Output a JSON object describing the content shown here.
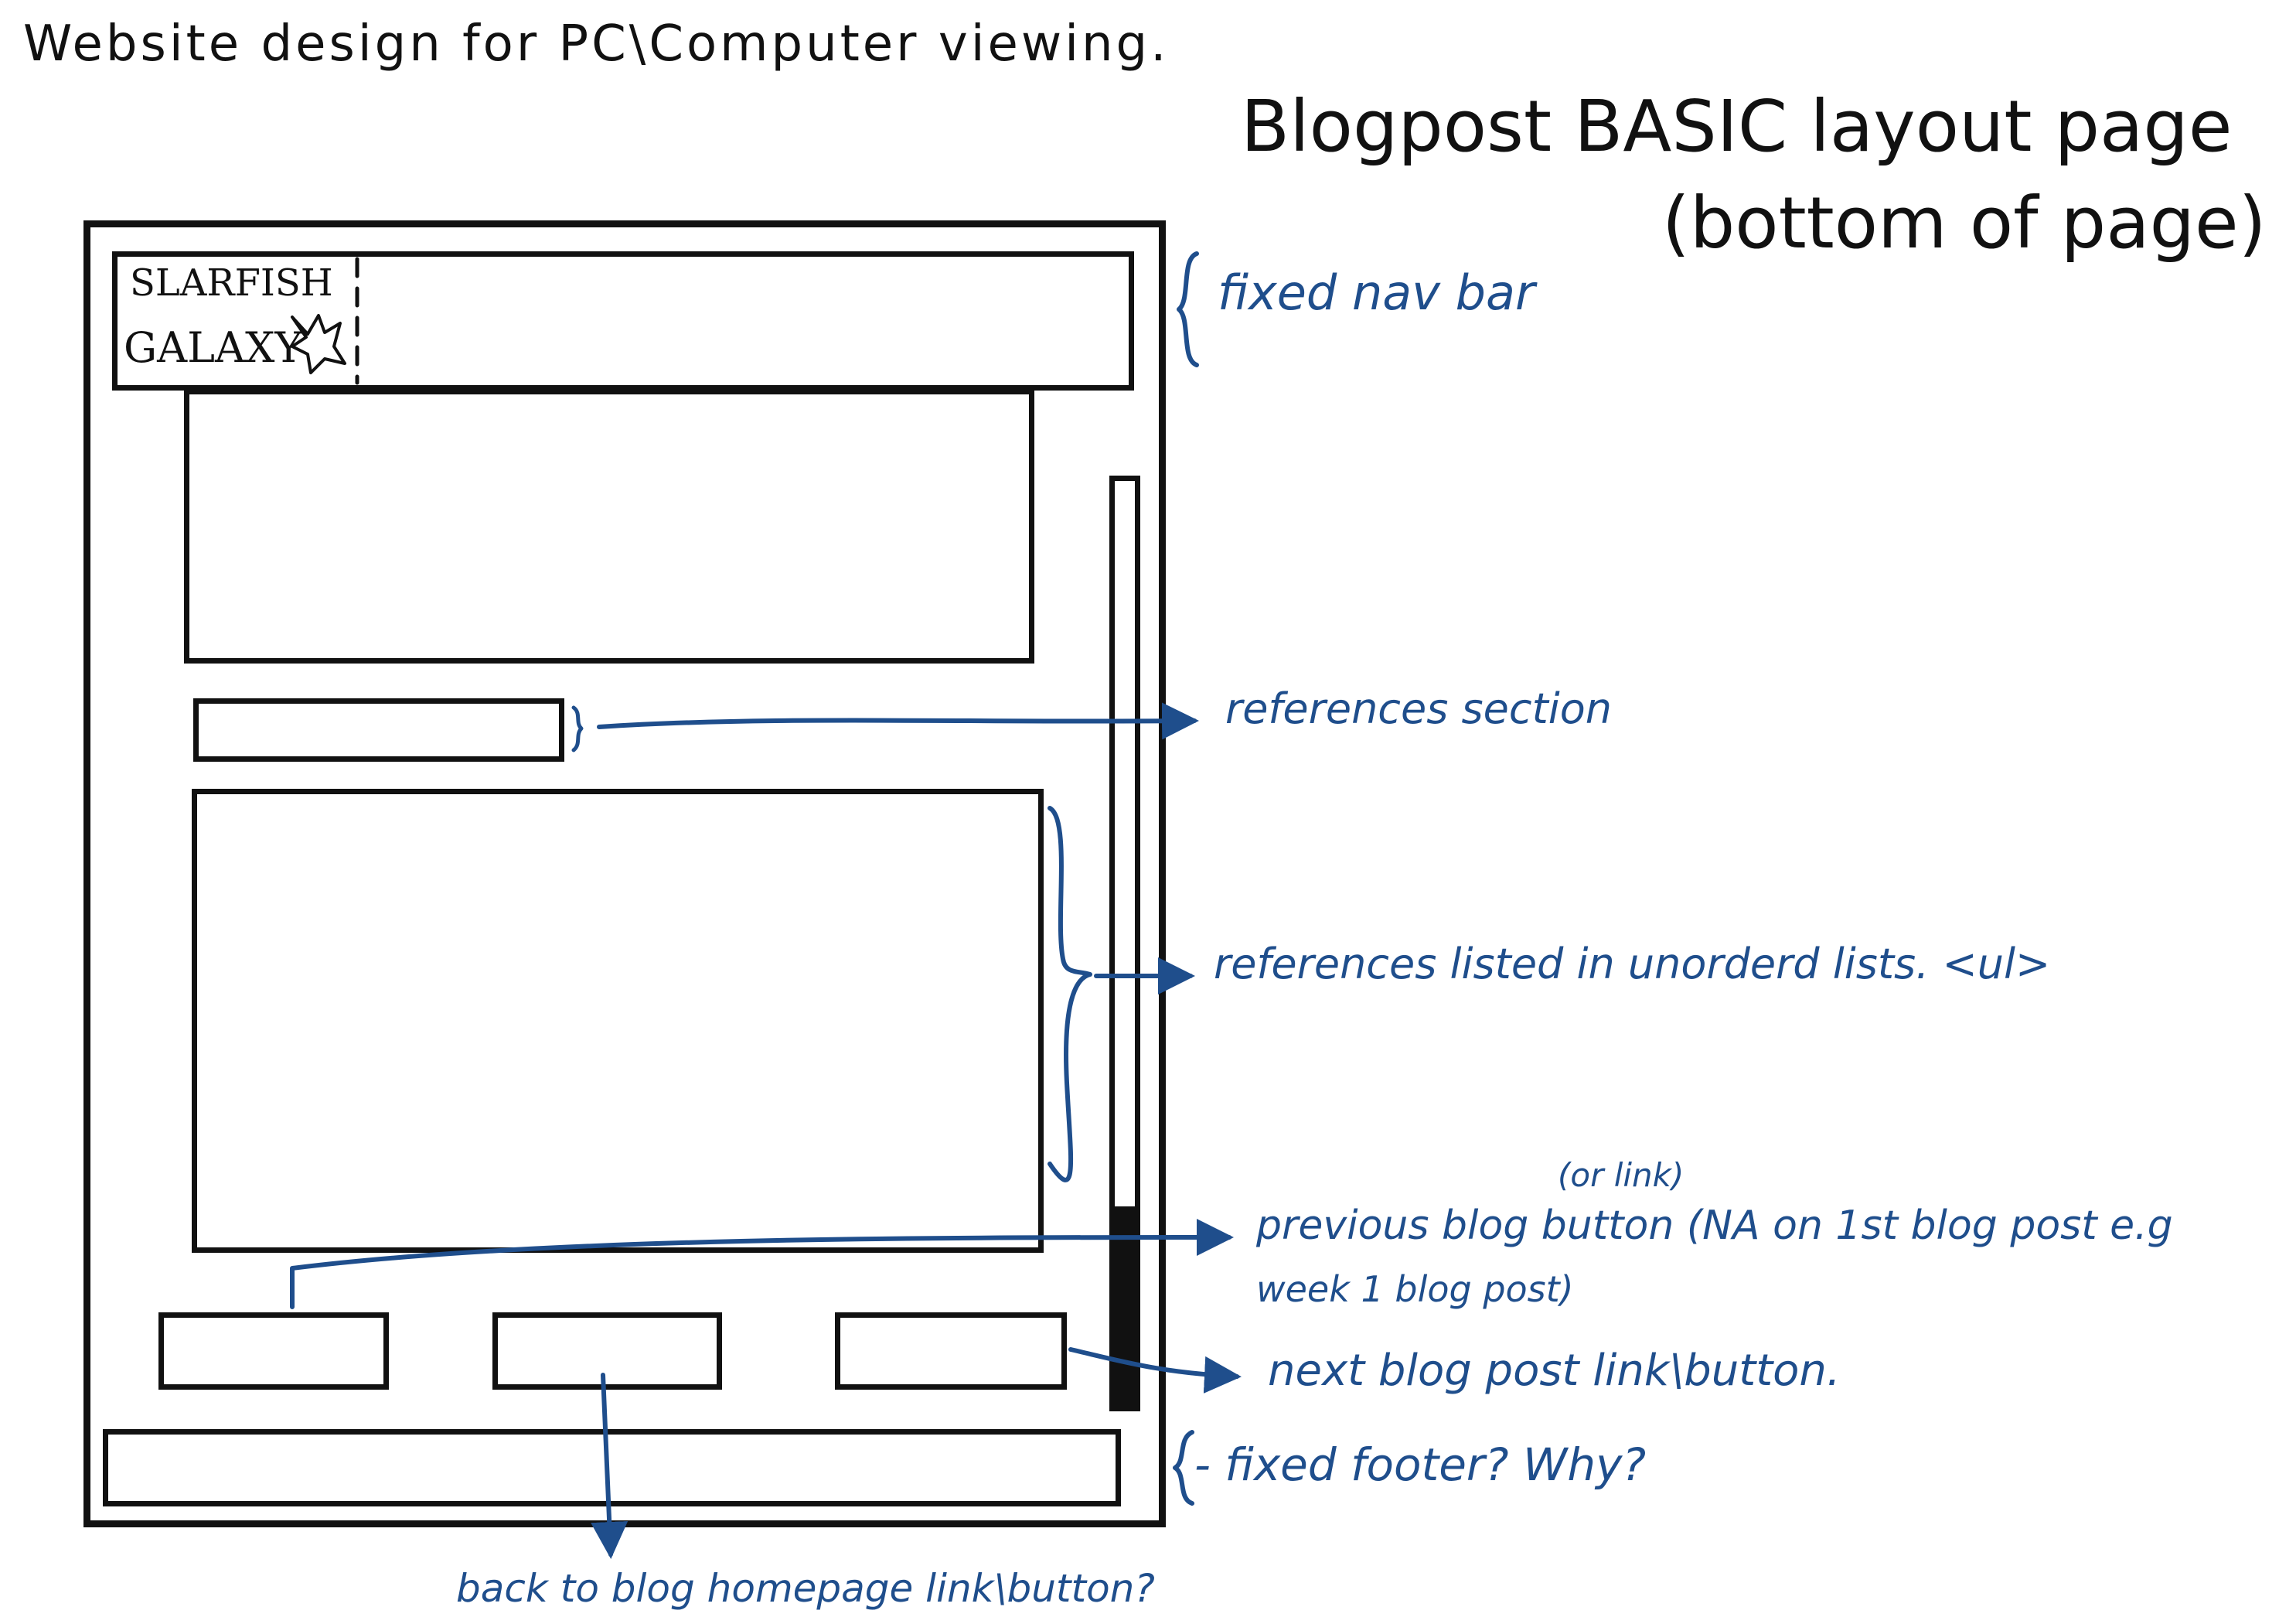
{
  "header": {
    "subtitle": "Website design for PC\\Computer viewing.",
    "title_line1": "Blogpost BASIC layout page",
    "title_line2": "(bottom of page)"
  },
  "wireframe": {
    "logo_line1": "SLARFISH",
    "logo_line2": "GALAXY"
  },
  "annotations": {
    "nav": "fixed nav bar",
    "references_section": "references section",
    "references_list": "references listed in unorderd lists. <ul>",
    "previous_note": "(or link)",
    "previous_line1": "previous blog button (NA on 1st blog post e.g",
    "previous_line2": "week 1 blog post)",
    "next": "next blog post link\\button.",
    "footer": "- fixed footer? Why?",
    "back": "back to blog homepage link\\button?"
  },
  "colors": {
    "ink": "#111111",
    "annotation_blue": "#1f4e8c"
  }
}
